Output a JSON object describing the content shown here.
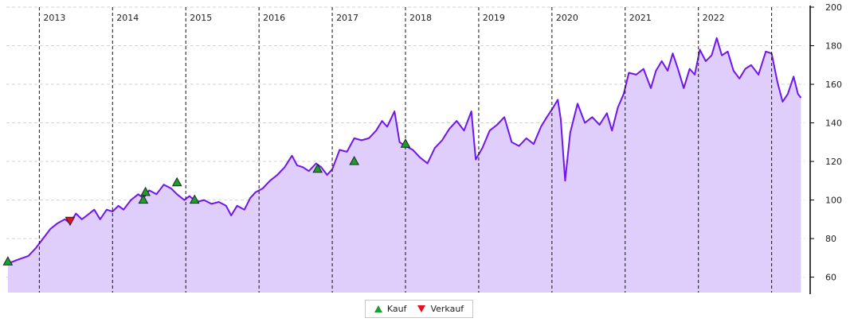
{
  "chart_data": {
    "type": "area",
    "title": "",
    "xlabel": "",
    "ylabel": "",
    "xlim": [
      2012.55,
      2023.45
    ],
    "ylim": [
      52,
      200
    ],
    "yticks": [
      60,
      80,
      100,
      120,
      140,
      160,
      180,
      200
    ],
    "year_labels": [
      "2013",
      "2014",
      "2015",
      "2016",
      "2017",
      "2018",
      "2019",
      "2020",
      "2021",
      "2022"
    ],
    "year_lines": [
      2013,
      2014,
      2015,
      2016,
      2017,
      2018,
      2019,
      2020,
      2021,
      2022,
      2023
    ],
    "grid": "horizontal-dashed",
    "legend_position": "bottom-center",
    "colors": {
      "line": "#6f16f0",
      "fill": "#dfcdfb",
      "buy": "#1a9e2c",
      "sell": "#e8101e"
    },
    "series": [
      {
        "values": [
          [
            2012.57,
            67
          ],
          [
            2012.7,
            69
          ],
          [
            2012.85,
            71
          ],
          [
            2012.95,
            75
          ],
          [
            2013.05,
            80
          ],
          [
            2013.15,
            85
          ],
          [
            2013.25,
            88
          ],
          [
            2013.35,
            90
          ],
          [
            2013.42,
            88
          ],
          [
            2013.5,
            93
          ],
          [
            2013.58,
            90
          ],
          [
            2013.65,
            92
          ],
          [
            2013.75,
            95
          ],
          [
            2013.83,
            90
          ],
          [
            2013.92,
            95
          ],
          [
            2014.0,
            94
          ],
          [
            2014.08,
            97
          ],
          [
            2014.15,
            95
          ],
          [
            2014.25,
            100
          ],
          [
            2014.35,
            103
          ],
          [
            2014.42,
            101
          ],
          [
            2014.5,
            105
          ],
          [
            2014.6,
            103
          ],
          [
            2014.7,
            108
          ],
          [
            2014.8,
            106
          ],
          [
            2014.88,
            103
          ],
          [
            2014.98,
            100
          ],
          [
            2015.05,
            102
          ],
          [
            2015.15,
            99
          ],
          [
            2015.25,
            100
          ],
          [
            2015.35,
            98
          ],
          [
            2015.45,
            99
          ],
          [
            2015.55,
            97
          ],
          [
            2015.62,
            92
          ],
          [
            2015.7,
            97
          ],
          [
            2015.8,
            95
          ],
          [
            2015.88,
            101
          ],
          [
            2015.95,
            104
          ],
          [
            2016.05,
            106
          ],
          [
            2016.15,
            110
          ],
          [
            2016.25,
            113
          ],
          [
            2016.35,
            117
          ],
          [
            2016.45,
            123
          ],
          [
            2016.52,
            118
          ],
          [
            2016.6,
            117
          ],
          [
            2016.68,
            115
          ],
          [
            2016.78,
            119
          ],
          [
            2016.85,
            117
          ],
          [
            2016.93,
            113
          ],
          [
            2017.0,
            116
          ],
          [
            2017.1,
            126
          ],
          [
            2017.2,
            125
          ],
          [
            2017.3,
            132
          ],
          [
            2017.4,
            131
          ],
          [
            2017.5,
            132
          ],
          [
            2017.6,
            136
          ],
          [
            2017.68,
            141
          ],
          [
            2017.75,
            138
          ],
          [
            2017.85,
            146
          ],
          [
            2017.92,
            130
          ],
          [
            2018.0,
            128
          ],
          [
            2018.1,
            126
          ],
          [
            2018.2,
            122
          ],
          [
            2018.3,
            119
          ],
          [
            2018.4,
            127
          ],
          [
            2018.5,
            131
          ],
          [
            2018.6,
            137
          ],
          [
            2018.7,
            141
          ],
          [
            2018.8,
            136
          ],
          [
            2018.9,
            146
          ],
          [
            2018.96,
            121
          ],
          [
            2019.05,
            127
          ],
          [
            2019.15,
            136
          ],
          [
            2019.25,
            139
          ],
          [
            2019.35,
            143
          ],
          [
            2019.45,
            130
          ],
          [
            2019.55,
            128
          ],
          [
            2019.65,
            132
          ],
          [
            2019.75,
            129
          ],
          [
            2019.85,
            138
          ],
          [
            2019.93,
            143
          ],
          [
            2020.0,
            147
          ],
          [
            2020.08,
            152
          ],
          [
            2020.12,
            142
          ],
          [
            2020.18,
            110
          ],
          [
            2020.25,
            135
          ],
          [
            2020.35,
            150
          ],
          [
            2020.45,
            140
          ],
          [
            2020.55,
            143
          ],
          [
            2020.65,
            139
          ],
          [
            2020.75,
            145
          ],
          [
            2020.82,
            136
          ],
          [
            2020.9,
            148
          ],
          [
            2020.98,
            155
          ],
          [
            2021.05,
            166
          ],
          [
            2021.15,
            165
          ],
          [
            2021.25,
            168
          ],
          [
            2021.35,
            158
          ],
          [
            2021.42,
            167
          ],
          [
            2021.5,
            172
          ],
          [
            2021.58,
            167
          ],
          [
            2021.65,
            176
          ],
          [
            2021.72,
            168
          ],
          [
            2021.8,
            158
          ],
          [
            2021.88,
            168
          ],
          [
            2021.95,
            165
          ],
          [
            2022.02,
            178
          ],
          [
            2022.1,
            172
          ],
          [
            2022.18,
            175
          ],
          [
            2022.25,
            184
          ],
          [
            2022.32,
            175
          ],
          [
            2022.4,
            177
          ],
          [
            2022.48,
            167
          ],
          [
            2022.56,
            163
          ],
          [
            2022.64,
            168
          ],
          [
            2022.72,
            170
          ],
          [
            2022.82,
            165
          ],
          [
            2022.92,
            177
          ],
          [
            2023.0,
            176
          ],
          [
            2023.08,
            161
          ],
          [
            2023.15,
            151
          ],
          [
            2023.22,
            155
          ],
          [
            2023.3,
            164
          ],
          [
            2023.36,
            155
          ],
          [
            2023.4,
            153
          ]
        ]
      }
    ],
    "markers": [
      {
        "type": "buy",
        "x": 2012.57,
        "y": 68
      },
      {
        "type": "sell",
        "x": 2013.42,
        "y": 89
      },
      {
        "type": "buy",
        "x": 2014.42,
        "y": 100
      },
      {
        "type": "buy",
        "x": 2014.45,
        "y": 104
      },
      {
        "type": "buy",
        "x": 2014.88,
        "y": 109
      },
      {
        "type": "buy",
        "x": 2015.12,
        "y": 100
      },
      {
        "type": "buy",
        "x": 2016.8,
        "y": 116
      },
      {
        "type": "buy",
        "x": 2017.3,
        "y": 120
      },
      {
        "type": "buy",
        "x": 2018.0,
        "y": 129
      }
    ],
    "legend": [
      {
        "key": "buy",
        "label": "Kauf"
      },
      {
        "key": "sell",
        "label": "Verkauf"
      }
    ]
  }
}
